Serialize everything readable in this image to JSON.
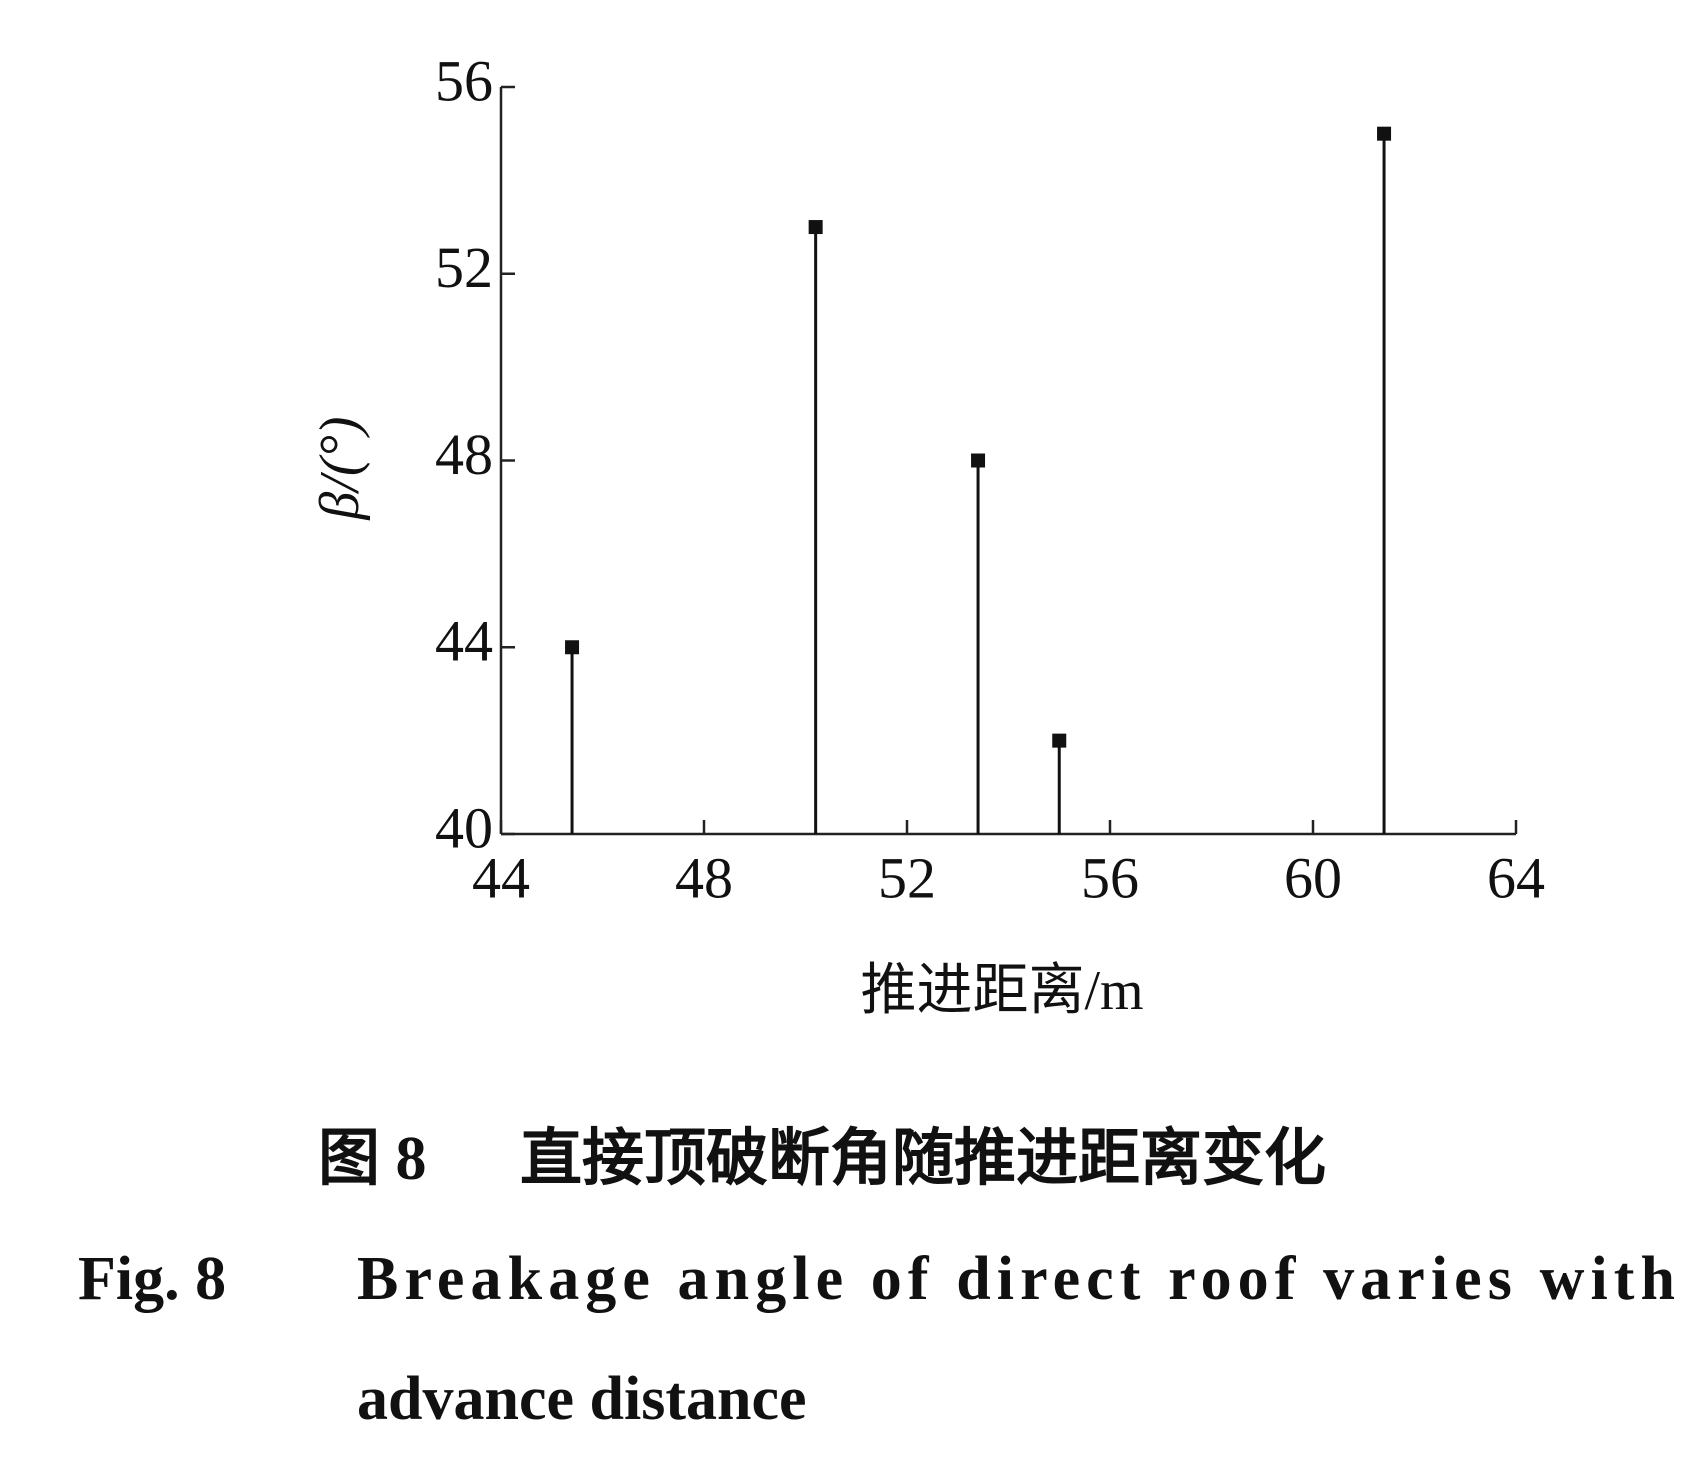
{
  "chart_data": {
    "type": "stem",
    "x": [
      45.4,
      50.2,
      53.4,
      55.0,
      61.4
    ],
    "values": [
      44,
      53,
      48,
      42,
      55
    ],
    "color": "#111111",
    "xlim": [
      44,
      64
    ],
    "xticks": [
      44,
      48,
      52,
      56,
      60,
      64
    ],
    "ylim": [
      40,
      56
    ],
    "yticks": [
      40,
      44,
      48,
      52,
      56
    ],
    "xlabel": "推进距离/m",
    "ylabel": "β/(°)",
    "caption_cn": [
      "图 8",
      "直接顶破断角随推进距离变化"
    ],
    "caption_en": [
      "Fig. 8",
      "Breakage angle of direct roof varies with",
      "advance distance"
    ]
  }
}
